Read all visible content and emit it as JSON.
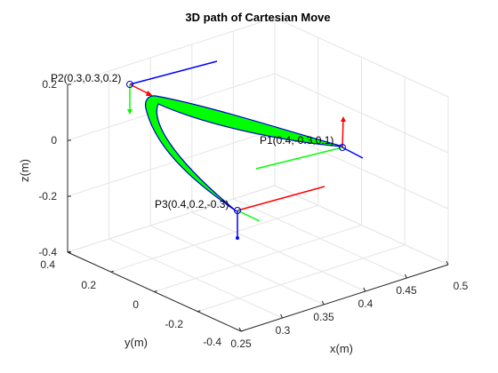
{
  "chart_data": {
    "type": "line",
    "title": "3D path of Cartesian Move",
    "xlabel": "x(m)",
    "ylabel": "y(m)",
    "zlabel": "z(m)",
    "x_ticks": [
      "0.25",
      "0.3",
      "0.35",
      "0.4",
      "0.45",
      "0.5"
    ],
    "y_ticks": [
      "-0.4",
      "-0.2",
      "0",
      "0.2",
      "0.4"
    ],
    "z_ticks": [
      "-0.4",
      "-0.2",
      "0",
      "0.2"
    ],
    "xlim": [
      0.25,
      0.5
    ],
    "ylim": [
      -0.4,
      0.4
    ],
    "zlim": [
      -0.4,
      0.2
    ],
    "grid": true,
    "points": [
      {
        "label": "P1(0.4,-0.3,0.1)",
        "x": 0.4,
        "y": -0.3,
        "z": 0.1
      },
      {
        "label": "P2(0.3,0.3,0.2)",
        "x": 0.3,
        "y": 0.3,
        "z": 0.2
      },
      {
        "label": "P3(0.4,0.2,-0.3)",
        "x": 0.4,
        "y": 0.2,
        "z": -0.3
      }
    ],
    "path_order": [
      "P1",
      "P2",
      "P3"
    ],
    "colors": {
      "path": "#00ff00",
      "path_edge": "#0000cc",
      "frame_x": "#ff0000",
      "frame_y": "#00ff00",
      "frame_z": "#0000ff",
      "grid": "#e5e5e5",
      "axis": "#262626"
    }
  }
}
